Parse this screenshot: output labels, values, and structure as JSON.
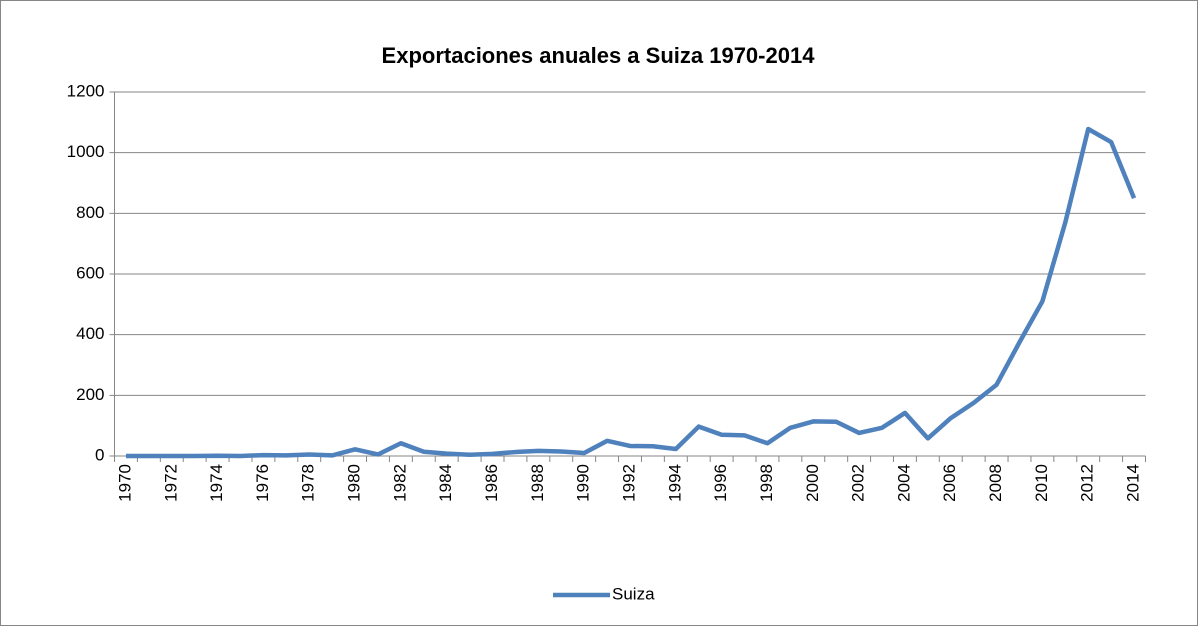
{
  "chart_data": {
    "type": "line",
    "title": "Exportaciones anuales a Suiza 1970-2014",
    "categories": [
      "1970",
      null,
      "1972",
      null,
      "1974",
      null,
      "1976",
      null,
      "1978",
      null,
      "1980",
      null,
      "1982",
      null,
      "1984",
      null,
      "1986",
      null,
      "1988",
      null,
      "1990",
      null,
      "1992",
      null,
      "1994",
      null,
      "1996",
      null,
      "1998",
      null,
      "2000",
      null,
      "2002",
      null,
      "2004",
      null,
      "2006",
      null,
      "2008",
      null,
      "2010",
      null,
      "2012",
      null,
      "2014"
    ],
    "series": [
      {
        "name": "Suiza",
        "color": "#4f81bd",
        "values": [
          0,
          0,
          0,
          0,
          1,
          0,
          3,
          2,
          5,
          2,
          22,
          5,
          42,
          14,
          8,
          4,
          7,
          13,
          17,
          15,
          10,
          50,
          33,
          32,
          23,
          97,
          70,
          68,
          42,
          93,
          114,
          113,
          76,
          93,
          142,
          58,
          125,
          175,
          235,
          375,
          510,
          770,
          1078,
          1035,
          850
        ]
      }
    ],
    "ylim": [
      0,
      1200
    ],
    "yticks": [
      0,
      200,
      400,
      600,
      800,
      1000,
      1200
    ],
    "grid": true,
    "legend": "bottom"
  }
}
